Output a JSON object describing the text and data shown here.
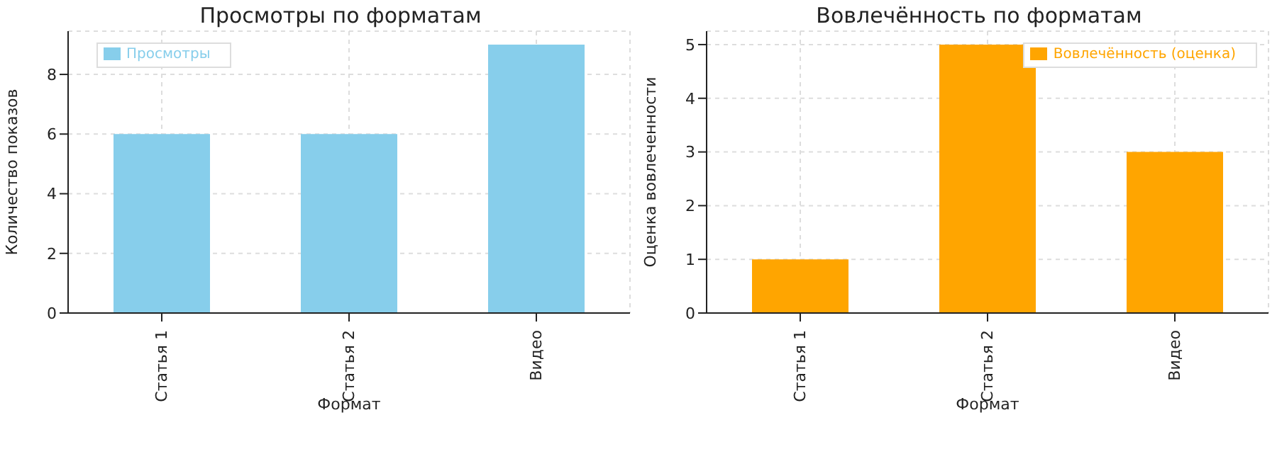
{
  "chart_data": [
    {
      "type": "bar",
      "title": "Просмотры по форматам",
      "xlabel": "Формат",
      "ylabel": "Количество показов",
      "categories": [
        "Статья 1",
        "Статья 2",
        "Видео"
      ],
      "series": [
        {
          "name": "Просмотры",
          "color": "#87ceeb",
          "values": [
            6,
            6,
            9
          ]
        }
      ],
      "ylim": [
        0,
        9.45
      ],
      "yticks": [
        0,
        2,
        4,
        6,
        8
      ],
      "grid": true,
      "legend": "top left"
    },
    {
      "type": "bar",
      "title": "Вовлечённость по форматам",
      "xlabel": "Формат",
      "ylabel": "Оценка вовлеченности",
      "categories": [
        "Статья 1",
        "Статья 2",
        "Видео"
      ],
      "series": [
        {
          "name": "Вовлечённость (оценка)",
          "color": "#ffa500",
          "values": [
            1,
            5,
            3
          ]
        }
      ],
      "ylim": [
        0,
        5.25
      ],
      "yticks": [
        0,
        1,
        2,
        3,
        4,
        5
      ],
      "grid": true,
      "legend": "top right"
    }
  ]
}
